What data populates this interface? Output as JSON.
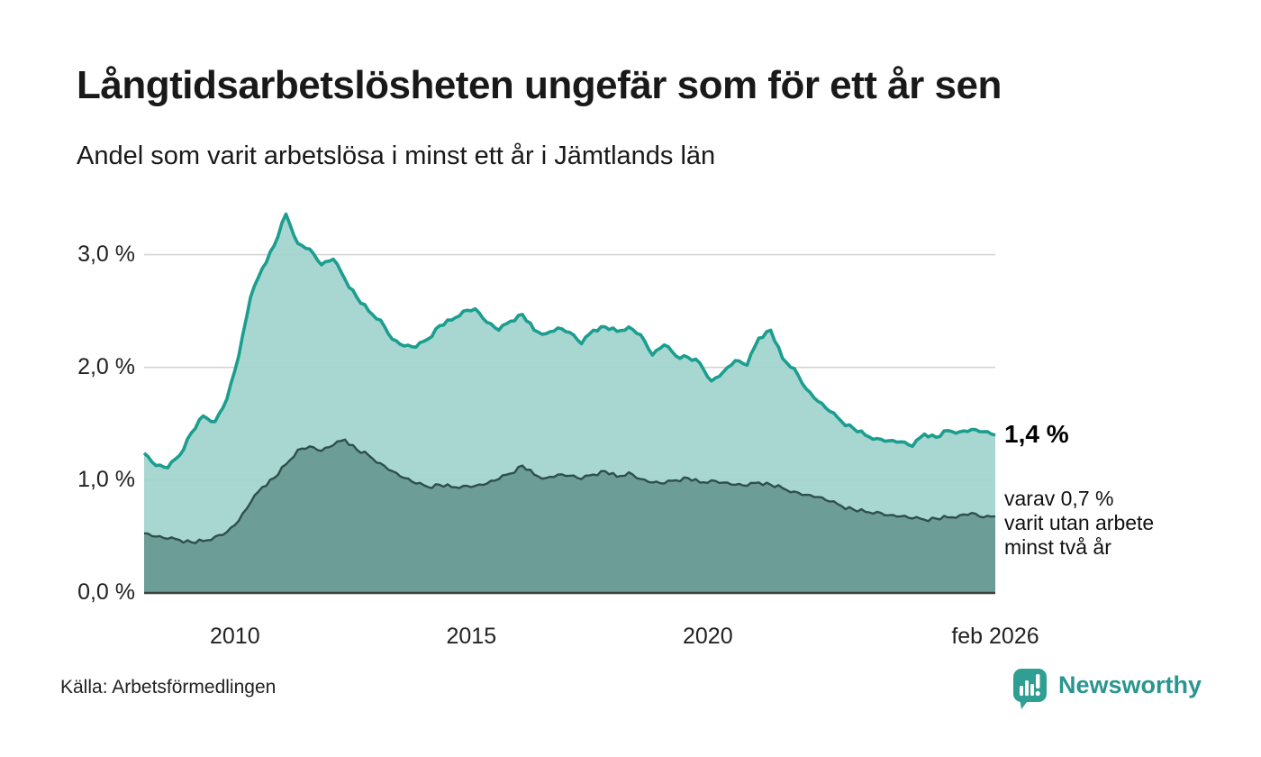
{
  "header": {
    "title": "Långtidsarbetslösheten ungefär som för ett år sen",
    "subtitle": "Andel som varit arbetslösa i minst ett år i Jämtlands län"
  },
  "annotations": {
    "latest_value": "1,4 %",
    "secondary_note_line1": "varav 0,7 %",
    "secondary_note_line2": "varit utan arbete",
    "secondary_note_line3": "minst två år"
  },
  "footer": {
    "source": "Källa: Arbetsförmedlingen",
    "brand": "Newsworthy"
  },
  "colors": {
    "title_text": "#191919",
    "line_one_year": "#1b9e8f",
    "fill_one_year": "#9fd4cc",
    "line_two_years": "#2f4f4b",
    "fill_two_years": "#689a93",
    "grid": "#d4d4d4",
    "axis": "#3a4442",
    "brand_teal": "#2f9e93"
  },
  "chart_data": {
    "type": "area",
    "title": "Långtidsarbetslösheten ungefär som för ett år sen",
    "subtitle": "Andel som varit arbetslösa i minst ett år i Jämtlands län",
    "xlabel": "",
    "ylabel": "",
    "unit": "%",
    "grid": "horizontal",
    "legend": "none",
    "ylim": [
      0,
      3.58
    ],
    "x_unit": "decimal-year (monthly series shown, sampled quarterly)",
    "x": [
      2008.08,
      2008.33,
      2008.58,
      2008.83,
      2009.08,
      2009.33,
      2009.58,
      2009.83,
      2010.08,
      2010.33,
      2010.58,
      2010.83,
      2011.08,
      2011.33,
      2011.58,
      2011.83,
      2012.08,
      2012.33,
      2012.58,
      2012.83,
      2013.08,
      2013.33,
      2013.58,
      2013.83,
      2014.08,
      2014.33,
      2014.58,
      2014.83,
      2015.08,
      2015.33,
      2015.58,
      2015.83,
      2016.08,
      2016.33,
      2016.58,
      2016.83,
      2017.08,
      2017.33,
      2017.58,
      2017.83,
      2018.08,
      2018.33,
      2018.58,
      2018.83,
      2019.08,
      2019.33,
      2019.58,
      2019.83,
      2020.08,
      2020.33,
      2020.58,
      2020.83,
      2021.08,
      2021.33,
      2021.58,
      2021.83,
      2022.08,
      2022.33,
      2022.58,
      2022.83,
      2023.08,
      2023.33,
      2023.58,
      2023.83,
      2024.08,
      2024.33,
      2024.58,
      2024.83,
      2025.08,
      2025.33,
      2025.58,
      2025.83,
      2026.08
    ],
    "series": [
      {
        "name": "Andel som varit arbetslösa i minst ett år",
        "latest_label": "1,4 %",
        "values": [
          1.24,
          1.13,
          1.11,
          1.22,
          1.42,
          1.57,
          1.52,
          1.72,
          2.1,
          2.62,
          2.88,
          3.08,
          3.36,
          3.1,
          3.05,
          2.91,
          2.96,
          2.78,
          2.62,
          2.5,
          2.42,
          2.25,
          2.19,
          2.18,
          2.25,
          2.37,
          2.42,
          2.5,
          2.52,
          2.4,
          2.33,
          2.41,
          2.47,
          2.33,
          2.3,
          2.35,
          2.31,
          2.21,
          2.33,
          2.36,
          2.32,
          2.36,
          2.29,
          2.11,
          2.2,
          2.1,
          2.09,
          2.04,
          1.88,
          1.96,
          2.06,
          2.02,
          2.26,
          2.33,
          2.08,
          1.99,
          1.81,
          1.7,
          1.61,
          1.52,
          1.46,
          1.4,
          1.37,
          1.35,
          1.34,
          1.3,
          1.41,
          1.38,
          1.44,
          1.43,
          1.45,
          1.43,
          1.4
        ]
      },
      {
        "name": "varav varit utan arbete minst två år",
        "latest_label": "0,7 %",
        "values": [
          0.53,
          0.5,
          0.48,
          0.47,
          0.45,
          0.46,
          0.5,
          0.54,
          0.64,
          0.8,
          0.94,
          1.02,
          1.14,
          1.27,
          1.3,
          1.26,
          1.31,
          1.36,
          1.27,
          1.22,
          1.15,
          1.08,
          1.02,
          0.97,
          0.94,
          0.96,
          0.94,
          0.95,
          0.95,
          0.97,
          1.01,
          1.06,
          1.13,
          1.05,
          1.02,
          1.05,
          1.04,
          1.01,
          1.05,
          1.08,
          1.03,
          1.07,
          1.01,
          0.98,
          0.97,
          1.0,
          1.02,
          0.98,
          1.0,
          0.98,
          0.96,
          0.95,
          0.98,
          0.96,
          0.93,
          0.9,
          0.87,
          0.85,
          0.81,
          0.77,
          0.74,
          0.72,
          0.72,
          0.69,
          0.68,
          0.66,
          0.65,
          0.66,
          0.67,
          0.69,
          0.71,
          0.67,
          0.68
        ]
      }
    ],
    "yticks": [
      {
        "value": 0,
        "label": "0,0 %"
      },
      {
        "value": 1,
        "label": "1,0 %"
      },
      {
        "value": 2,
        "label": "2,0 %"
      },
      {
        "value": 3,
        "label": "3,0 %"
      }
    ],
    "xticks": [
      {
        "value": 2010,
        "label": "2010"
      },
      {
        "value": 2015,
        "label": "2015"
      },
      {
        "value": 2020,
        "label": "2020"
      },
      {
        "value": 2026.08,
        "label": "feb 2026"
      }
    ]
  }
}
